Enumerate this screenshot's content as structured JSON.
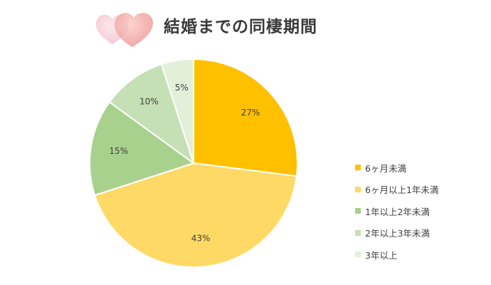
{
  "header": {
    "title": "結婚までの同棲期間"
  },
  "chart_data": {
    "type": "pie",
    "title": "結婚までの同棲期間",
    "labels": [
      "6ヶ月未満",
      "6ヶ月以上1年未満",
      "1年以上2年未満",
      "2年以上3年未満",
      "3年以上"
    ],
    "values": [
      27,
      43,
      15,
      10,
      5
    ],
    "value_labels": [
      "27%",
      "43%",
      "15%",
      "10%",
      "5%"
    ],
    "colors": [
      "#FFC000",
      "#FFD966",
      "#A9D18E",
      "#C5E0B4",
      "#E2F0D9"
    ],
    "start_angle_deg": 0,
    "direction": "clockwise",
    "legend_position": "right"
  },
  "decorations": {
    "hearts_icon": "two-pink-hearts"
  }
}
